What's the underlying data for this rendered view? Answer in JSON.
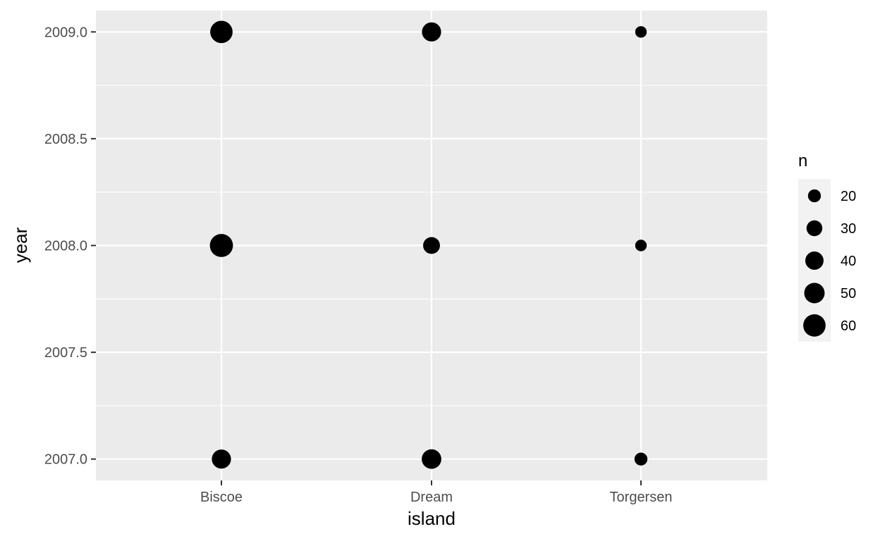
{
  "chart_data": {
    "type": "scatter",
    "xlabel": "island",
    "ylabel": "year",
    "categories": [
      "Biscoe",
      "Dream",
      "Torgersen"
    ],
    "y_ticks": [
      2007.0,
      2007.5,
      2008.0,
      2008.5,
      2009.0
    ],
    "y_tick_labels": [
      "2007.0",
      "2007.5",
      "2008.0",
      "2008.5",
      "2009.0"
    ],
    "ylim": [
      2006.9,
      2009.1
    ],
    "size_variable": "n",
    "points": [
      {
        "x": "Biscoe",
        "y": 2007,
        "n": 44
      },
      {
        "x": "Biscoe",
        "y": 2008,
        "n": 64
      },
      {
        "x": "Biscoe",
        "y": 2009,
        "n": 60
      },
      {
        "x": "Dream",
        "y": 2007,
        "n": 46
      },
      {
        "x": "Dream",
        "y": 2008,
        "n": 34
      },
      {
        "x": "Dream",
        "y": 2009,
        "n": 44
      },
      {
        "x": "Torgersen",
        "y": 2007,
        "n": 20
      },
      {
        "x": "Torgersen",
        "y": 2008,
        "n": 16
      },
      {
        "x": "Torgersen",
        "y": 2009,
        "n": 16
      }
    ],
    "legend": {
      "title": "n",
      "position": "right",
      "entries": [
        {
          "value": 20,
          "label": "20"
        },
        {
          "value": 30,
          "label": "30"
        },
        {
          "value": 40,
          "label": "40"
        },
        {
          "value": 50,
          "label": "50"
        },
        {
          "value": 60,
          "label": "60"
        }
      ]
    },
    "grid": true,
    "colors": {
      "panel": "#ebebeb",
      "grid": "#ffffff",
      "point": "#000000",
      "tick_text": "#4d4d4d"
    }
  }
}
